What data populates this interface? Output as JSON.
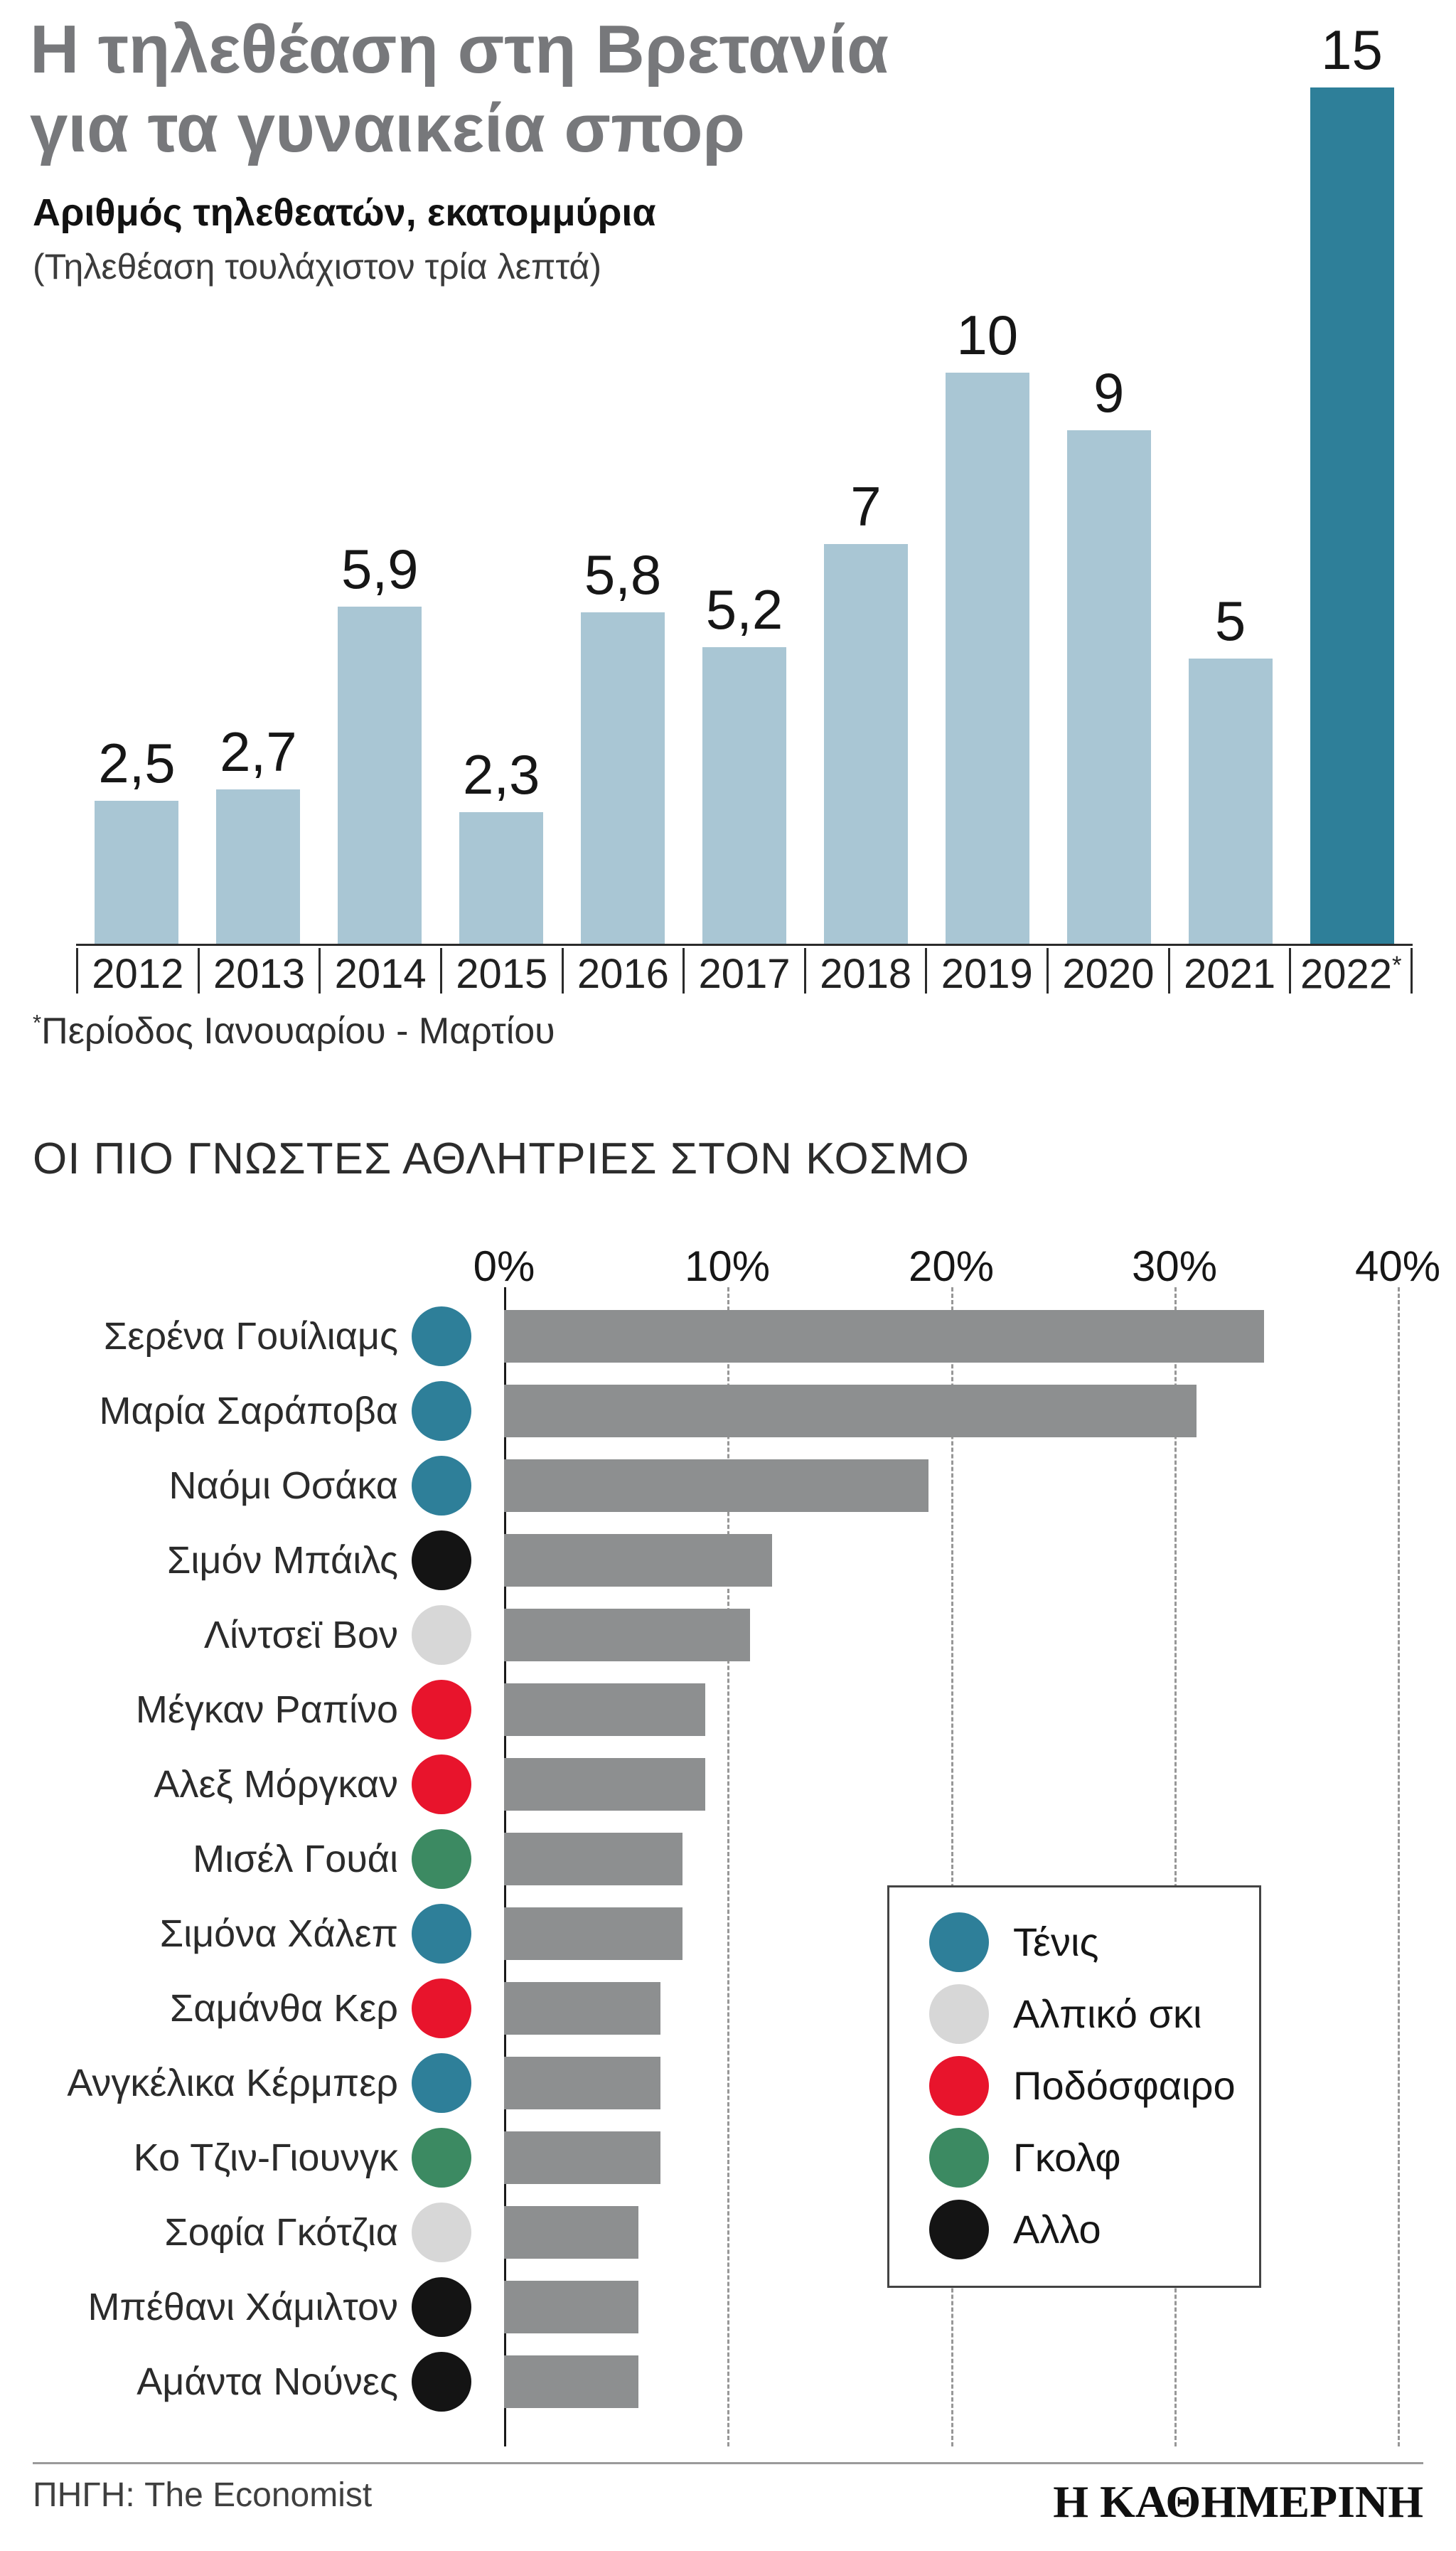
{
  "header": {
    "title_line1": "Η τηλεθέαση στη Βρετανία",
    "title_line2": "για τα γυναικεία σπορ",
    "subtitle": "Αριθμός τηλεθεατών, εκατομμύρια",
    "subtitle2": "(Τηλεθέαση τουλάχιστον τρία λεπτά)"
  },
  "section2_title": "ΟΙ ΠΙΟ ΓΝΩΣΤΕΣ ΑΘΛΗΤΡΙΕΣ ΣΤΟΝ ΚΟΣΜΟ",
  "chart_data": [
    {
      "type": "bar",
      "title": "Αριθμός τηλεθεατών, εκατομμύρια (Τηλεθέαση τουλάχιστον τρία λεπτά)",
      "categories": [
        "2012",
        "2013",
        "2014",
        "2015",
        "2016",
        "2017",
        "2018",
        "2019",
        "2020",
        "2021",
        "2022*"
      ],
      "values": [
        2.5,
        2.7,
        5.9,
        2.3,
        5.8,
        5.2,
        7,
        10,
        9,
        5,
        15
      ],
      "value_labels": [
        "2,5",
        "2,7",
        "5,9",
        "2,3",
        "5,8",
        "5,2",
        "7",
        "10",
        "9",
        "5",
        "15"
      ],
      "ylim": [
        0,
        15
      ],
      "highlight_index": 10,
      "bar_color": "#a9c6d4",
      "highlight_color": "#2e7f99",
      "footnote_mark": "*",
      "footnote_text": "Περίοδος Ιανουαρίου - Μαρτίου",
      "grid": false,
      "legend_position": "none"
    },
    {
      "type": "bar-horizontal",
      "title": "ΟΙ ΠΙΟ ΓΝΩΣΤΕΣ ΑΘΛΗΤΡΙΕΣ ΣΤΟΝ ΚΟΣΜΟ",
      "axis_ticks": [
        "0%",
        "10%",
        "20%",
        "30%",
        "40%"
      ],
      "xlim": [
        0,
        40
      ],
      "bar_color": "#8d8f90",
      "grid": true,
      "legend_position": "inside-right",
      "rows": [
        {
          "name": "Σερένα Γουίλιαμς",
          "sport": "tennis",
          "value": 34
        },
        {
          "name": "Μαρία Σαράποβα",
          "sport": "tennis",
          "value": 31
        },
        {
          "name": "Ναόμι Οσάκα",
          "sport": "tennis",
          "value": 19
        },
        {
          "name": "Σιμόν Μπάιλς",
          "sport": "other",
          "value": 12
        },
        {
          "name": "Λίντσεϊ Βον",
          "sport": "ski",
          "value": 11
        },
        {
          "name": "Μέγκαν Ραπίνο",
          "sport": "football",
          "value": 9
        },
        {
          "name": "Αλεξ Μόργκαν",
          "sport": "football",
          "value": 9
        },
        {
          "name": "Μισέλ Γουάι",
          "sport": "golf",
          "value": 8
        },
        {
          "name": "Σιμόνα Χάλεπ",
          "sport": "tennis",
          "value": 8
        },
        {
          "name": "Σαμάνθα Κερ",
          "sport": "football",
          "value": 7
        },
        {
          "name": "Ανγκέλικα Κέρμπερ",
          "sport": "tennis",
          "value": 7
        },
        {
          "name": "Κο Τζιν-Γιουνγκ",
          "sport": "golf",
          "value": 7
        },
        {
          "name": "Σοφία Γκότζια",
          "sport": "ski",
          "value": 6
        },
        {
          "name": "Μπέθανι Χάμιλτον",
          "sport": "other",
          "value": 6
        },
        {
          "name": "Αμάντα Νούνες",
          "sport": "other",
          "value": 6
        }
      ],
      "legend": [
        {
          "label": "Τένις",
          "sport": "tennis"
        },
        {
          "label": "Αλπικό σκι",
          "sport": "ski"
        },
        {
          "label": "Ποδόσφαιρο",
          "sport": "football"
        },
        {
          "label": "Γκολφ",
          "sport": "golf"
        },
        {
          "label": "Αλλο",
          "sport": "other"
        }
      ],
      "sport_colors": {
        "tennis": "#2e7f99",
        "ski": "#d7d7d7",
        "football": "#e8142c",
        "golf": "#3c8a62",
        "other": "#141414"
      }
    }
  ],
  "footer": {
    "source": "ΠΗΓΗ: The Economist",
    "logo": "Η ΚΑΘΗΜΕΡΙΝΗ"
  }
}
